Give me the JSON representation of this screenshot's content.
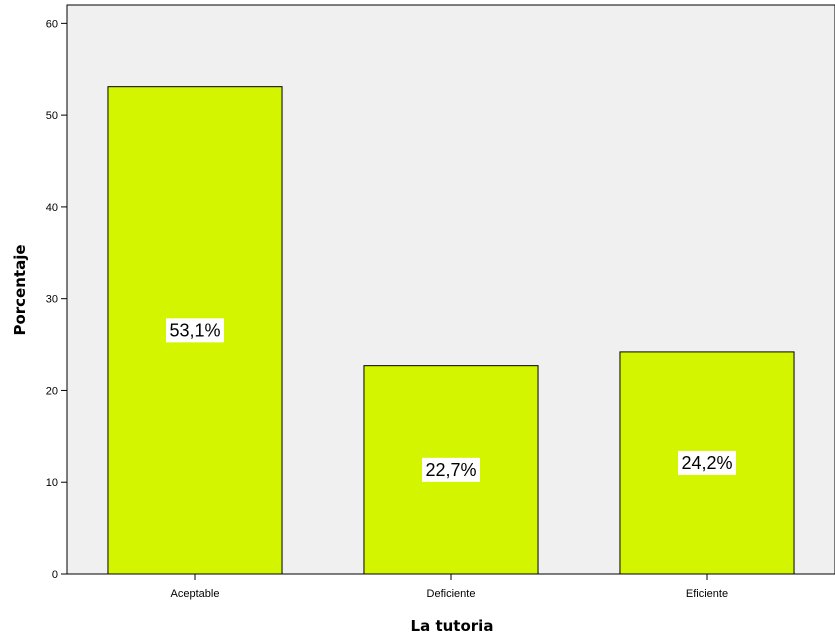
{
  "chart_data": {
    "type": "bar",
    "categories": [
      "Aceptable",
      "Deficiente",
      "Eficiente"
    ],
    "values": [
      53.1,
      22.7,
      24.2
    ],
    "data_labels": [
      "53,1%",
      "22,7%",
      "24,2%"
    ],
    "xlabel": "La tutoria",
    "ylabel": "Porcentaje",
    "ylim": [
      0,
      62
    ],
    "yticks": [
      0,
      10,
      20,
      30,
      40,
      50,
      60
    ],
    "bar_color": "#d4f500",
    "bar_edge_color": "#000000",
    "plot_background": "#f0f0f0",
    "grid": false,
    "legend": "none"
  }
}
